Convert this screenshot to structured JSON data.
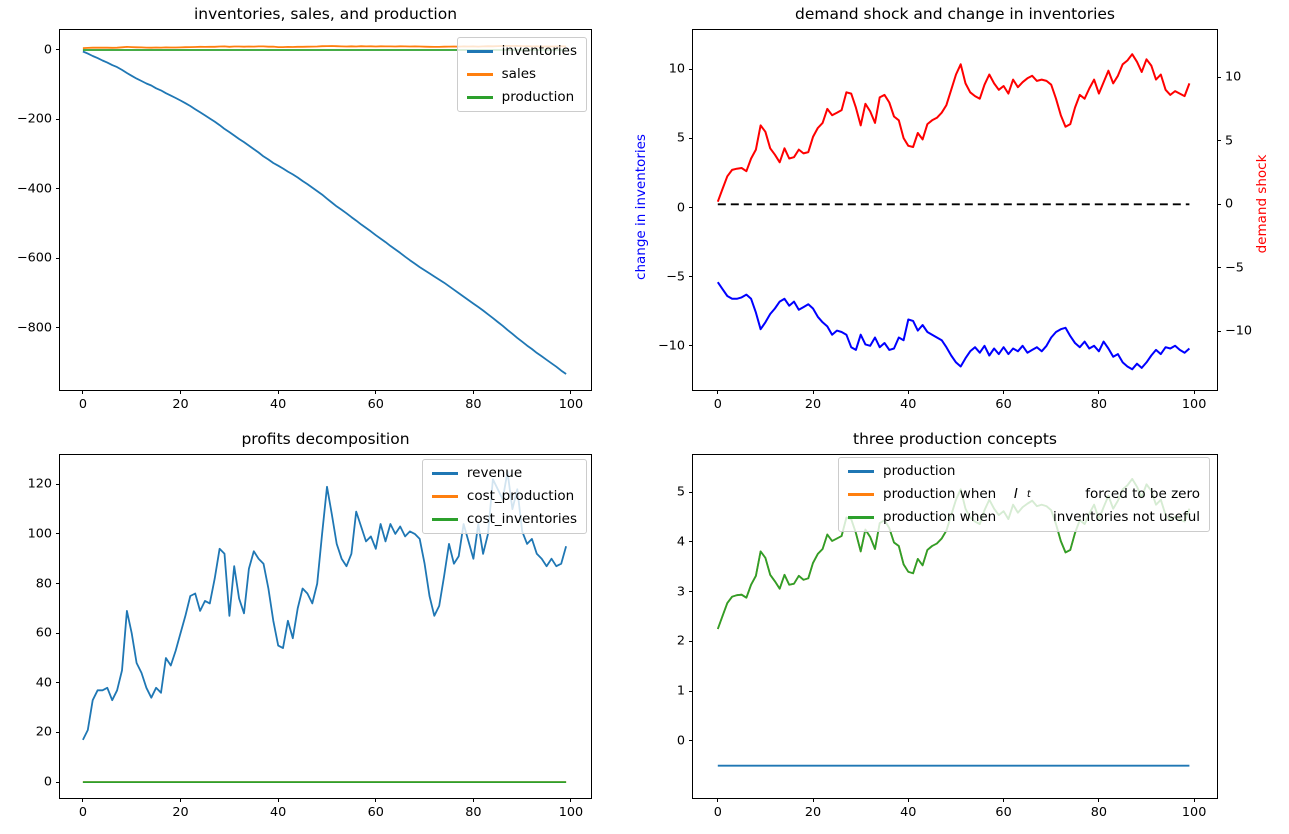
{
  "chart_data": [
    {
      "id": "tl",
      "type": "line",
      "title": "inventories, sales, and production",
      "xlim": [
        -4.7,
        104.1
      ],
      "ylim": [
        -980,
        57
      ],
      "xticks": {
        "values": [
          0,
          20,
          40,
          60,
          80,
          100
        ],
        "labels": [
          "0",
          "20",
          "40",
          "60",
          "80",
          "100"
        ]
      },
      "yticks": {
        "values": [
          0,
          -200,
          -400,
          -600,
          -800
        ],
        "labels": [
          "0",
          "−200",
          "−400",
          "−600",
          "−800"
        ]
      },
      "legend": [
        "inventories",
        "sales",
        "production"
      ],
      "series": [
        {
          "name": "inventories",
          "color": "#1f77b4",
          "width": 1.8,
          "values": [
            -5,
            -11,
            -18,
            -24,
            -31,
            -37,
            -44,
            -50,
            -58,
            -67,
            -75,
            -83,
            -90,
            -97,
            -103,
            -111,
            -117,
            -125,
            -132,
            -139,
            -146,
            -154,
            -162,
            -171,
            -180,
            -189,
            -198,
            -207,
            -217,
            -228,
            -237,
            -247,
            -257,
            -266,
            -276,
            -286,
            -296,
            -307,
            -316,
            -326,
            -334,
            -342,
            -351,
            -359,
            -368,
            -378,
            -387,
            -397,
            -407,
            -417,
            -429,
            -440,
            -451,
            -461,
            -471,
            -482,
            -492,
            -503,
            -513,
            -523,
            -534,
            -544,
            -554,
            -565,
            -575,
            -585,
            -596,
            -606,
            -616,
            -626,
            -635,
            -644,
            -653,
            -662,
            -671,
            -681,
            -691,
            -701,
            -711,
            -721,
            -731,
            -741,
            -751,
            -762,
            -773,
            -784,
            -795,
            -807,
            -818,
            -830,
            -841,
            -852,
            -862,
            -873,
            -883,
            -893,
            -903,
            -913,
            -924,
            -934
          ]
        },
        {
          "name": "sales",
          "color": "#ff7f0e",
          "width": 1.8,
          "values": [
            4.9,
            5.4,
            5.9,
            6.1,
            6.1,
            6.0,
            5.8,
            6.1,
            7.1,
            8.3,
            7.8,
            7.2,
            6.8,
            6.3,
            6.1,
            6.6,
            6.3,
            6.9,
            6.7,
            6.5,
            6.8,
            7.4,
            7.8,
            8.1,
            8.7,
            8.4,
            8.5,
            8.7,
            9.6,
            9.8,
            8.7,
            9.4,
            9.5,
            8.9,
            9.6,
            9.3,
            9.8,
            9.7,
            8.9,
            9.1,
            7.6,
            7.7,
            8.4,
            8.0,
            8.5,
            8.7,
            8.9,
            9.1,
            9.6,
            10.2,
            10.7,
            11.0,
            10.4,
            9.9,
            9.6,
            10.0,
            9.5,
            10.2,
            9.7,
            10.1,
            9.6,
            10.1,
            9.7,
            9.9,
            9.5,
            10.0,
            9.8,
            9.6,
            9.9,
            9.5,
            8.9,
            8.5,
            8.3,
            8.2,
            8.8,
            9.3,
            9.6,
            9.2,
            9.7,
            9.5,
            9.9,
            9.2,
            9.7,
            10.3,
            10.1,
            10.7,
            11.0,
            11.2,
            10.8,
            11.1,
            10.7,
            10.2,
            9.8,
            10.1,
            9.6,
            9.7,
            9.5,
            9.8,
            10.0,
            9.7
          ]
        },
        {
          "name": "production",
          "color": "#2ca02c",
          "width": 1.8,
          "x": [
            0,
            99
          ],
          "values": [
            -0.5,
            -0.5
          ]
        }
      ]
    },
    {
      "id": "tr",
      "type": "line",
      "title": "demand shock and change in inventories",
      "ylabel_left": "change in inventories",
      "ylabel_left_color": "#0000ff",
      "ylabel_right": "demand shock",
      "ylabel_right_color": "#ff0000",
      "xlim": [
        -5.2,
        104.8
      ],
      "ylim_left": [
        -13.2,
        12.85
      ],
      "ylim_right": [
        -14.6,
        13.7
      ],
      "xticks": {
        "values": [
          0,
          20,
          40,
          60,
          80,
          100
        ],
        "labels": [
          "0",
          "20",
          "40",
          "60",
          "80",
          "100"
        ]
      },
      "yticks_left": {
        "values": [
          10,
          5,
          0,
          -5,
          -10
        ],
        "labels": [
          "10",
          "5",
          "0",
          "−5",
          "−10"
        ]
      },
      "yticks_right": {
        "values": [
          10,
          5,
          0,
          -5,
          -10
        ],
        "labels": [
          "10",
          "5",
          "0",
          "−5",
          "−10"
        ]
      },
      "series": [
        {
          "name": "change_in_inventories",
          "color": "#0000ff",
          "axis": "left",
          "width": 2,
          "values": [
            -5.4,
            -5.9,
            -6.4,
            -6.6,
            -6.6,
            -6.5,
            -6.3,
            -6.6,
            -7.6,
            -8.8,
            -8.3,
            -7.7,
            -7.3,
            -6.8,
            -6.6,
            -7.1,
            -6.8,
            -7.4,
            -7.2,
            -7.0,
            -7.3,
            -7.9,
            -8.3,
            -8.6,
            -9.2,
            -8.9,
            -9.0,
            -9.2,
            -10.1,
            -10.3,
            -9.2,
            -9.9,
            -10.0,
            -9.4,
            -10.1,
            -9.8,
            -10.3,
            -10.2,
            -9.4,
            -9.6,
            -8.1,
            -8.2,
            -8.9,
            -8.5,
            -9.0,
            -9.2,
            -9.4,
            -9.6,
            -10.1,
            -10.7,
            -11.2,
            -11.5,
            -10.9,
            -10.4,
            -10.1,
            -10.5,
            -10.0,
            -10.7,
            -10.2,
            -10.6,
            -10.1,
            -10.6,
            -10.2,
            -10.4,
            -10.0,
            -10.5,
            -10.3,
            -10.1,
            -10.4,
            -10.0,
            -9.4,
            -9.0,
            -8.8,
            -8.7,
            -9.3,
            -9.8,
            -10.1,
            -9.7,
            -10.2,
            -10.0,
            -10.4,
            -9.7,
            -10.2,
            -10.8,
            -10.6,
            -11.2,
            -11.5,
            -11.7,
            -11.3,
            -11.6,
            -11.2,
            -10.7,
            -10.3,
            -10.6,
            -10.1,
            -10.2,
            -10.0,
            -10.3,
            -10.5,
            -10.2
          ]
        },
        {
          "name": "demand_shock",
          "color": "#ff0000",
          "axis": "right",
          "width": 2,
          "values": [
            0.2,
            1.2,
            2.2,
            2.7,
            2.8,
            2.85,
            2.6,
            3.6,
            4.3,
            6.2,
            5.7,
            4.4,
            3.9,
            3.3,
            4.4,
            3.6,
            3.7,
            4.3,
            4.0,
            4.1,
            5.3,
            6.0,
            6.4,
            7.5,
            7.0,
            7.2,
            7.4,
            8.8,
            8.7,
            7.6,
            6.2,
            7.9,
            7.3,
            6.4,
            8.4,
            8.6,
            8.0,
            6.9,
            6.6,
            5.2,
            4.6,
            4.5,
            5.6,
            5.1,
            6.3,
            6.6,
            6.8,
            7.2,
            7.8,
            9.0,
            10.2,
            11.0,
            9.5,
            8.8,
            8.5,
            8.3,
            9.4,
            10.2,
            9.5,
            9.0,
            9.3,
            8.7,
            9.8,
            9.2,
            9.6,
            9.9,
            10.1,
            9.7,
            9.8,
            9.7,
            9.4,
            8.3,
            7.0,
            6.1,
            6.3,
            7.6,
            8.6,
            8.3,
            9.1,
            9.8,
            8.7,
            9.6,
            10.5,
            9.5,
            10.1,
            11.0,
            11.3,
            11.8,
            11.2,
            10.4,
            11.4,
            10.9,
            9.8,
            10.2,
            9.0,
            8.6,
            8.9,
            8.7,
            8.5,
            9.5
          ]
        },
        {
          "name": "zero_line",
          "color": "#000000",
          "axis": "right",
          "width": 1.8,
          "dash": "8 5",
          "x": [
            0,
            99
          ],
          "values": [
            0,
            0
          ]
        }
      ]
    },
    {
      "id": "bl",
      "type": "line",
      "title": "profits decomposition",
      "xlim": [
        -4.7,
        104.1
      ],
      "ylim": [
        -6.4,
        131.8
      ],
      "xticks": {
        "values": [
          0,
          20,
          40,
          60,
          80,
          100
        ],
        "labels": [
          "0",
          "20",
          "40",
          "60",
          "80",
          "100"
        ]
      },
      "yticks": {
        "values": [
          0,
          20,
          40,
          60,
          80,
          100,
          120
        ],
        "labels": [
          "0",
          "20",
          "40",
          "60",
          "80",
          "100",
          "120"
        ]
      },
      "legend": [
        "revenue",
        "cost_production",
        "cost_inventories"
      ],
      "series": [
        {
          "name": "revenue",
          "color": "#1f77b4",
          "width": 1.8,
          "values": [
            17,
            21,
            33,
            37,
            37,
            38,
            33,
            37,
            45,
            69,
            60,
            48,
            44,
            38,
            34,
            38,
            36,
            50,
            47,
            53,
            60,
            67,
            75,
            76,
            69,
            73,
            72,
            82,
            94,
            92,
            67,
            87,
            74,
            68,
            86,
            93,
            90,
            88,
            78,
            65,
            55,
            54,
            65,
            58,
            70,
            78,
            76,
            72,
            80,
            100,
            119,
            108,
            96,
            90,
            87,
            92,
            109,
            103,
            97,
            99,
            94,
            104,
            97,
            104,
            100,
            103,
            99,
            101,
            100,
            98,
            88,
            75,
            67,
            71,
            83,
            96,
            88,
            91,
            104,
            97,
            90,
            104,
            92,
            100,
            122,
            118,
            114,
            125,
            110,
            118,
            101,
            96,
            98,
            92,
            90,
            87,
            90,
            87,
            88,
            95
          ]
        },
        {
          "name": "cost_production",
          "color": "#ff7f0e",
          "width": 1.8,
          "x": [
            0,
            99
          ],
          "values": [
            0,
            0
          ]
        },
        {
          "name": "cost_inventories",
          "color": "#2ca02c",
          "width": 1.8,
          "x": [
            0,
            99
          ],
          "values": [
            0,
            0
          ]
        }
      ]
    },
    {
      "id": "br",
      "type": "line",
      "title": "three production concepts",
      "xlim": [
        -5.2,
        104.8
      ],
      "ylim": [
        -1.15,
        5.75
      ],
      "xticks": {
        "values": [
          0,
          20,
          40,
          60,
          80,
          100
        ],
        "labels": [
          "0",
          "20",
          "40",
          "60",
          "80",
          "100"
        ]
      },
      "yticks": {
        "values": [
          0,
          1,
          2,
          3,
          4,
          5
        ],
        "labels": [
          "0",
          "1",
          "2",
          "3",
          "4",
          "5"
        ]
      },
      "legend_rows": [
        {
          "label": "production"
        },
        {
          "pre": "production when  ",
          "math_base": "I",
          "math_sub": "t",
          "right": "forced to be zero"
        },
        {
          "pre": "production when",
          "right": "inventories not useful"
        }
      ],
      "series": [
        {
          "name": "production",
          "color": "#1f77b4",
          "width": 1.8,
          "x": [
            0,
            99
          ],
          "values": [
            -0.5,
            -0.5
          ]
        },
        {
          "name": "production_inventories_forced_zero",
          "color": "#ff7f0e",
          "width": 1.8,
          "values": [
            2.25,
            2.51,
            2.77,
            2.9,
            2.93,
            2.94,
            2.88,
            3.14,
            3.32,
            3.81,
            3.68,
            3.34,
            3.21,
            3.06,
            3.34,
            3.14,
            3.16,
            3.32,
            3.24,
            3.27,
            3.58,
            3.76,
            3.86,
            4.15,
            4.02,
            4.07,
            4.12,
            4.49,
            4.46,
            4.18,
            3.81,
            4.25,
            4.1,
            3.86,
            4.38,
            4.44,
            4.28,
            3.99,
            3.92,
            3.55,
            3.4,
            3.37,
            3.66,
            3.53,
            3.84,
            3.92,
            3.97,
            4.07,
            4.23,
            4.54,
            4.85,
            5.06,
            4.67,
            4.49,
            4.41,
            4.36,
            4.64,
            4.85,
            4.67,
            4.54,
            4.62,
            4.46,
            4.75,
            4.59,
            4.7,
            4.77,
            4.83,
            4.72,
            4.75,
            4.72,
            4.64,
            4.36,
            4.02,
            3.79,
            3.84,
            4.18,
            4.44,
            4.36,
            4.57,
            4.75,
            4.46,
            4.7,
            4.93,
            4.67,
            4.83,
            5.06,
            5.14,
            5.27,
            5.11,
            4.9,
            5.16,
            5.03,
            4.75,
            4.85,
            4.54,
            4.44,
            4.51,
            4.46,
            4.41,
            4.67
          ]
        },
        {
          "name": "production_inventories_not_useful",
          "color": "#2ca02c",
          "width": 1.8,
          "values": [
            2.25,
            2.51,
            2.77,
            2.9,
            2.93,
            2.94,
            2.88,
            3.14,
            3.32,
            3.81,
            3.68,
            3.34,
            3.21,
            3.06,
            3.34,
            3.14,
            3.16,
            3.32,
            3.24,
            3.27,
            3.58,
            3.76,
            3.86,
            4.15,
            4.02,
            4.07,
            4.12,
            4.49,
            4.46,
            4.18,
            3.81,
            4.25,
            4.1,
            3.86,
            4.38,
            4.44,
            4.28,
            3.99,
            3.92,
            3.55,
            3.4,
            3.37,
            3.66,
            3.53,
            3.84,
            3.92,
            3.97,
            4.07,
            4.23,
            4.54,
            4.85,
            5.06,
            4.67,
            4.49,
            4.41,
            4.36,
            4.64,
            4.85,
            4.67,
            4.54,
            4.62,
            4.46,
            4.75,
            4.59,
            4.7,
            4.77,
            4.83,
            4.72,
            4.75,
            4.72,
            4.64,
            4.36,
            4.02,
            3.79,
            3.84,
            4.18,
            4.44,
            4.36,
            4.57,
            4.75,
            4.46,
            4.7,
            4.93,
            4.67,
            4.83,
            5.06,
            5.14,
            5.27,
            5.11,
            4.9,
            5.16,
            5.03,
            4.75,
            4.85,
            4.54,
            4.44,
            4.51,
            4.46,
            4.41,
            4.67
          ]
        }
      ]
    }
  ]
}
